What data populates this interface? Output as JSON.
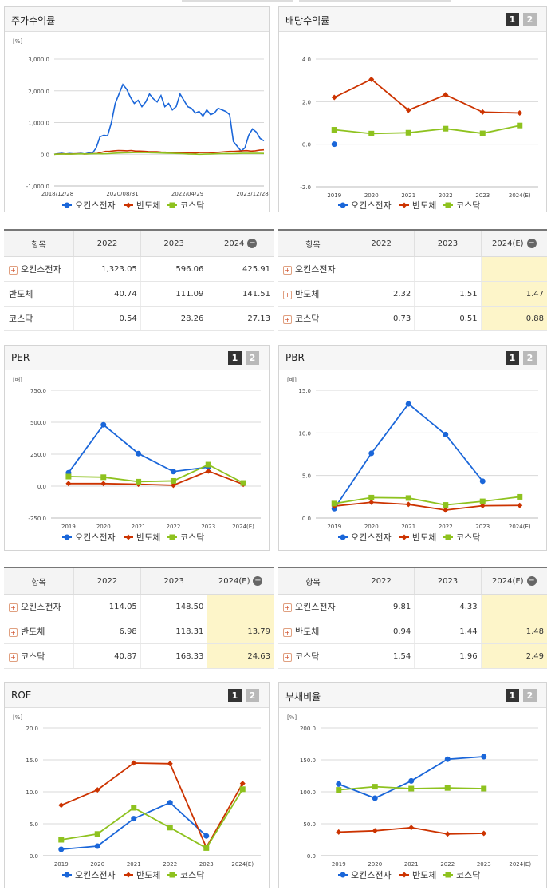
{
  "colors": {
    "blue": "#1a66d9",
    "red": "#cc3300",
    "green": "#8ec21f"
  },
  "legend": [
    "오킨스전자",
    "반도체",
    "코스닥"
  ],
  "panels": {
    "stock": {
      "title": "주가수익률"
    },
    "dividend": {
      "title": "배당수익률",
      "btn1": "1",
      "btn2": "2"
    },
    "per": {
      "title": "PER",
      "btn1": "1",
      "btn2": "2"
    },
    "pbr": {
      "title": "PBR",
      "btn1": "1",
      "btn2": "2"
    },
    "roe": {
      "title": "ROE",
      "btn1": "1",
      "btn2": "2"
    },
    "debt": {
      "title": "부채비율",
      "btn1": "1",
      "btn2": "2"
    }
  },
  "tables": {
    "stock": {
      "headers": [
        "항목",
        "2022",
        "2023",
        "2024"
      ],
      "rows": [
        [
          "오킨스전자",
          "1,323.05",
          "596.06",
          "425.91"
        ],
        [
          "반도체",
          "40.74",
          "111.09",
          "141.51"
        ],
        [
          "코스닥",
          "0.54",
          "28.26",
          "27.13"
        ]
      ]
    },
    "dividend": {
      "headers": [
        "항목",
        "2022",
        "2023",
        "2024(E)"
      ],
      "rows": [
        [
          "오킨스전자",
          "",
          "",
          ""
        ],
        [
          "반도체",
          "2.32",
          "1.51",
          "1.47"
        ],
        [
          "코스닥",
          "0.73",
          "0.51",
          "0.88"
        ]
      ]
    },
    "per": {
      "headers": [
        "항목",
        "2022",
        "2023",
        "2024(E)"
      ],
      "rows": [
        [
          "오킨스전자",
          "114.05",
          "148.50",
          ""
        ],
        [
          "반도체",
          "6.98",
          "118.31",
          "13.79"
        ],
        [
          "코스닥",
          "40.87",
          "168.33",
          "24.63"
        ]
      ]
    },
    "pbr": {
      "headers": [
        "항목",
        "2022",
        "2023",
        "2024(E)"
      ],
      "rows": [
        [
          "오킨스전자",
          "9.81",
          "4.33",
          ""
        ],
        [
          "반도체",
          "0.94",
          "1.44",
          "1.48"
        ],
        [
          "코스닥",
          "1.54",
          "1.96",
          "2.49"
        ]
      ]
    }
  },
  "chart_data": [
    {
      "id": "stock",
      "type": "line",
      "unit": "[%]",
      "yticks": [
        "3,000.0",
        "2,000.0",
        "1,000.0",
        "0.0",
        "-1,000.0"
      ],
      "ylim": [
        -1000,
        3000
      ],
      "xticks": [
        "2018/12/28",
        "2020/08/31",
        "2022/04/29",
        "2023/12/28"
      ],
      "series": [
        {
          "name": "오킨스전자",
          "values": [
            0,
            20,
            30,
            10,
            25,
            15,
            20,
            30,
            10,
            40,
            30,
            200,
            550,
            600,
            580,
            1000,
            1600,
            1900,
            2200,
            2050,
            1800,
            1600,
            1700,
            1500,
            1650,
            1900,
            1750,
            1650,
            1850,
            1500,
            1600,
            1400,
            1500,
            1900,
            1700,
            1500,
            1450,
            1300,
            1350,
            1200,
            1400,
            1250,
            1300,
            1450,
            1400,
            1350,
            1250,
            400,
            250,
            100,
            200,
            600,
            800,
            700,
            500,
            425
          ]
        },
        {
          "name": "반도체",
          "values": [
            0,
            10,
            15,
            10,
            10,
            15,
            20,
            10,
            15,
            20,
            25,
            60,
            90,
            95,
            110,
            120,
            115,
            110,
            120,
            100,
            100,
            95,
            85,
            80,
            80,
            70,
            65,
            50,
            45,
            40,
            45,
            50,
            45,
            40,
            60,
            55,
            55,
            50,
            60,
            70,
            80,
            90,
            90,
            100,
            110,
            115,
            100,
            110,
            130,
            140
          ]
        },
        {
          "name": "코스닥",
          "values": [
            0,
            5,
            10,
            5,
            10,
            15,
            10,
            15,
            20,
            15,
            20,
            30,
            40,
            45,
            50,
            55,
            60,
            55,
            50,
            45,
            40,
            35,
            30,
            25,
            20,
            10,
            5,
            0,
            5,
            10,
            15,
            20,
            25,
            20,
            25,
            30,
            30,
            28,
            30,
            27
          ]
        }
      ]
    },
    {
      "id": "dividend",
      "type": "line",
      "unit": "",
      "yticks": [
        "4.0",
        "2.0",
        "0.0",
        "-2.0"
      ],
      "ylim": [
        -2,
        4
      ],
      "categories": [
        "2019",
        "2020",
        "2021",
        "2022",
        "2023",
        "2024(E)"
      ],
      "series": [
        {
          "name": "오킨스전자",
          "values": [
            0.0,
            null,
            null,
            null,
            null,
            null
          ]
        },
        {
          "name": "반도체",
          "values": [
            2.2,
            3.05,
            1.6,
            2.32,
            1.51,
            1.47
          ]
        },
        {
          "name": "코스닥",
          "values": [
            0.68,
            0.5,
            0.54,
            0.73,
            0.51,
            0.88
          ]
        }
      ]
    },
    {
      "id": "per",
      "type": "line",
      "unit": "[배]",
      "yticks": [
        "750.0",
        "500.0",
        "250.0",
        "0.0",
        "-250.0"
      ],
      "ylim": [
        -250,
        750
      ],
      "categories": [
        "2019",
        "2020",
        "2021",
        "2022",
        "2023",
        "2024(E)"
      ],
      "series": [
        {
          "name": "오킨스전자",
          "values": [
            105,
            480,
            255,
            114.05,
            148.5,
            null
          ]
        },
        {
          "name": "반도체",
          "values": [
            20,
            20,
            15,
            6.98,
            118.31,
            13.79
          ]
        },
        {
          "name": "코스닥",
          "values": [
            75,
            70,
            35,
            40.87,
            168.33,
            24.63
          ]
        }
      ]
    },
    {
      "id": "pbr",
      "type": "line",
      "unit": "[배]",
      "yticks": [
        "15.0",
        "10.0",
        "5.0",
        "0.0"
      ],
      "ylim": [
        0,
        15
      ],
      "categories": [
        "2019",
        "2020",
        "2021",
        "2022",
        "2023",
        "2024(E)"
      ],
      "series": [
        {
          "name": "오킨스전자",
          "values": [
            1.1,
            7.6,
            13.4,
            9.81,
            4.33,
            null
          ]
        },
        {
          "name": "반도체",
          "values": [
            1.4,
            1.85,
            1.6,
            0.94,
            1.44,
            1.48
          ]
        },
        {
          "name": "코스닥",
          "values": [
            1.7,
            2.4,
            2.35,
            1.54,
            1.96,
            2.49
          ]
        }
      ]
    },
    {
      "id": "roe",
      "type": "line",
      "unit": "[%]",
      "yticks": [
        "20.0",
        "15.0",
        "10.0",
        "5.0",
        "0.0"
      ],
      "ylim": [
        0,
        20
      ],
      "categories": [
        "2019",
        "2020",
        "2021",
        "2022",
        "2023",
        "2024(E)"
      ],
      "series": [
        {
          "name": "오킨스전자",
          "values": [
            1.0,
            1.5,
            5.8,
            8.3,
            3.1,
            null
          ]
        },
        {
          "name": "반도체",
          "values": [
            7.9,
            10.3,
            14.5,
            14.4,
            1.3,
            11.3
          ]
        },
        {
          "name": "코스닥",
          "values": [
            2.5,
            3.4,
            7.5,
            4.4,
            1.2,
            10.4
          ]
        }
      ]
    },
    {
      "id": "debt",
      "type": "line",
      "unit": "[%]",
      "yticks": [
        "200.0",
        "150.0",
        "100.0",
        "50.0",
        "0.0"
      ],
      "ylim": [
        0,
        200
      ],
      "categories": [
        "2019",
        "2020",
        "2021",
        "2022",
        "2023",
        "2024(E)"
      ],
      "series": [
        {
          "name": "오킨스전자",
          "values": [
            112,
            90,
            117,
            151,
            155,
            null
          ]
        },
        {
          "name": "반도체",
          "values": [
            37,
            39,
            44,
            34,
            35,
            null
          ]
        },
        {
          "name": "코스닥",
          "values": [
            103,
            108,
            105,
            106,
            105,
            null
          ]
        }
      ]
    }
  ]
}
